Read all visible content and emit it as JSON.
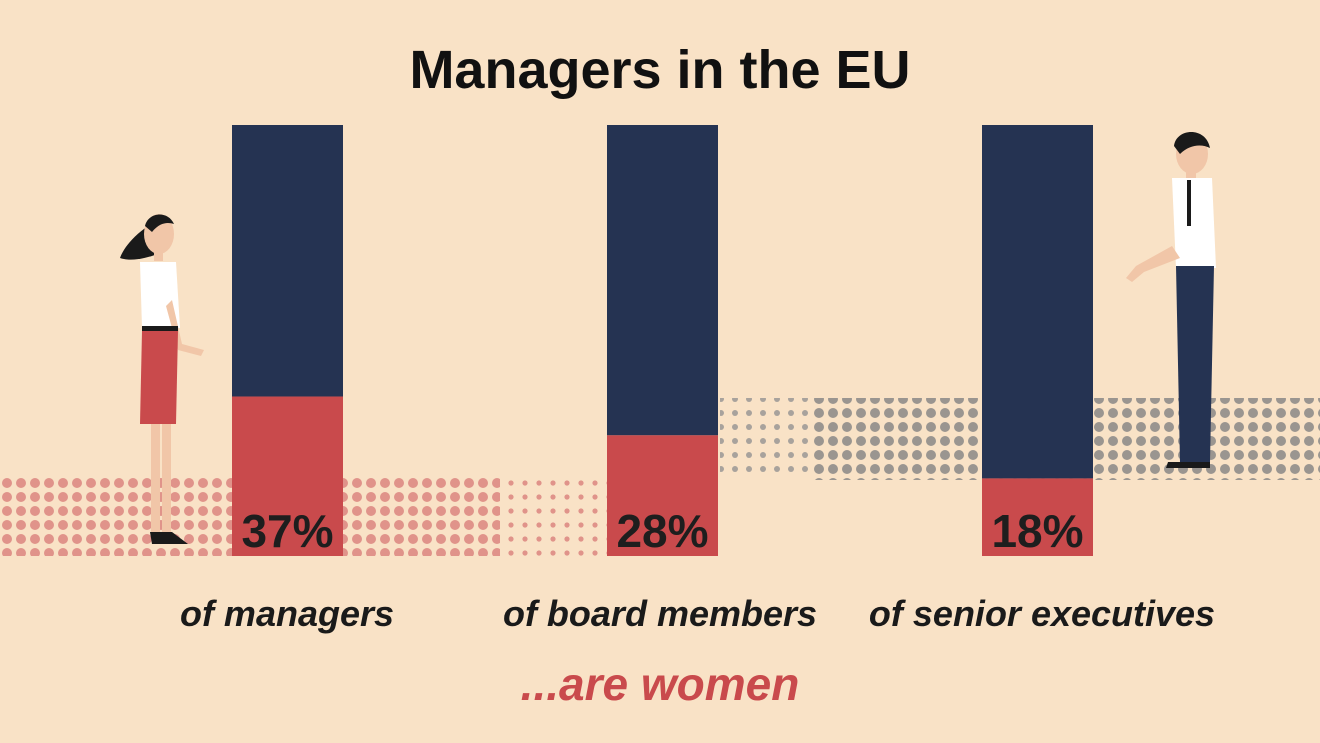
{
  "chart_data": {
    "type": "bar",
    "title": "Managers in the EU",
    "categories": [
      "of managers",
      "of board members",
      "of senior executives"
    ],
    "values": [
      37,
      28,
      18
    ],
    "value_labels": [
      "37%",
      "28%",
      "18%"
    ],
    "ylim": [
      0,
      100
    ],
    "footer": "...are women",
    "colors": {
      "women": "#c94a4c",
      "remainder": "#253352",
      "background": "#f9e2c6",
      "women_dots": "#e0938a",
      "men_dots": "#9a9590",
      "footer": "#c94a4c"
    }
  },
  "figures": {
    "left": "woman-figure-icon",
    "right": "man-figure-icon"
  }
}
